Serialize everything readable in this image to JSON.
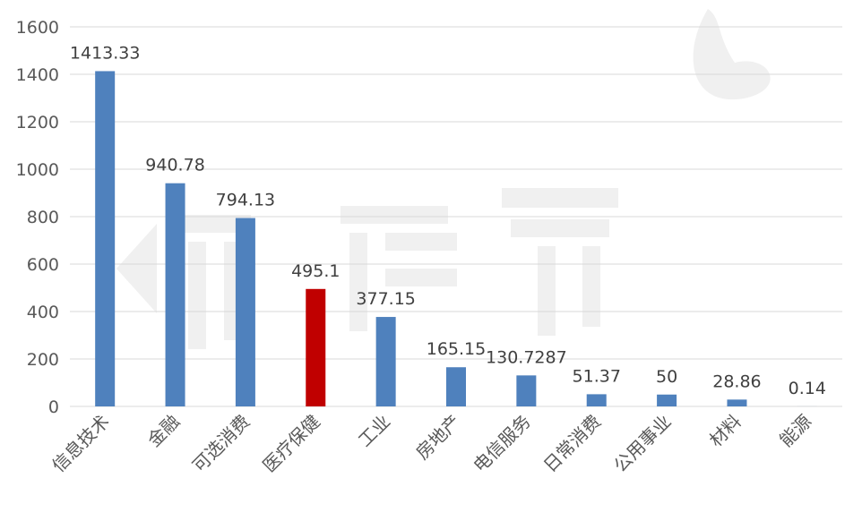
{
  "chart_data": {
    "type": "bar",
    "categories": [
      "信息技术",
      "金融",
      "可选消费",
      "医疗保健",
      "工业",
      "房地产",
      "电信服务",
      "日常消费",
      "公用事业",
      "材料",
      "能源"
    ],
    "values": [
      1413.33,
      940.78,
      794.13,
      495.1,
      377.15,
      165.15,
      130.7287,
      51.37,
      50,
      28.86,
      0.14
    ],
    "data_labels": [
      "1413.33",
      "940.78",
      "794.13",
      "495.1",
      "377.15",
      "165.15",
      "130.7287",
      "51.37",
      "50",
      "28.86",
      "0.14"
    ],
    "yticks": [
      "0",
      "200",
      "400",
      "600",
      "800",
      "1000",
      "1200",
      "1400",
      "1600"
    ],
    "ylim": [
      0,
      1600
    ],
    "grid": true,
    "legend": "none",
    "colors": {
      "default_bar": "#4f81bd",
      "highlight_bar": "#c00000",
      "highlight_index": 3
    }
  }
}
